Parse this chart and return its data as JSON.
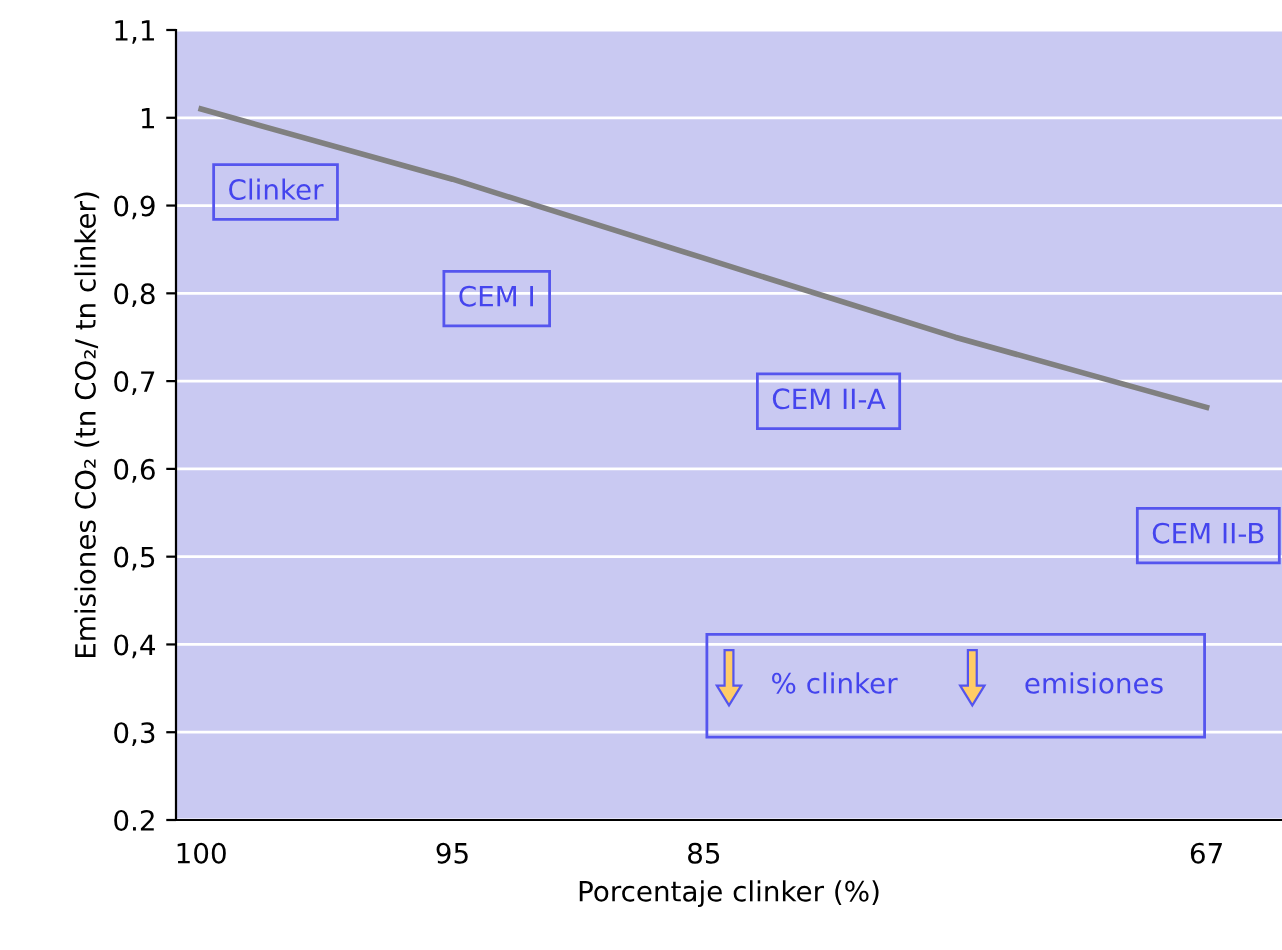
{
  "chart_data": {
    "type": "line",
    "xlabel": "Porcentaje clinker (%)",
    "ylabel": "Emisiones CO₂ (tn CO₂/ tn clinker)",
    "categories": [
      "100",
      "95",
      "85",
      null,
      "67"
    ],
    "series": [
      {
        "color": "#808080",
        "values": [
          1.01,
          0.93,
          0.84,
          0.75,
          0.67
        ]
      }
    ],
    "ylim": [
      0.2,
      1.1
    ],
    "yticks": [
      {
        "value": 0.2,
        "label": "0.2"
      },
      {
        "value": 0.3,
        "label": "0,3"
      },
      {
        "value": 0.4,
        "label": "0,4"
      },
      {
        "value": 0.5,
        "label": "0,5"
      },
      {
        "value": 0.6,
        "label": "0,6"
      },
      {
        "value": 0.7,
        "label": "0,7"
      },
      {
        "value": 0.8,
        "label": "0,8"
      },
      {
        "value": 0.9,
        "label": "0,9"
      },
      {
        "value": 1,
        "label": "1"
      },
      {
        "value": 1.1,
        "label": "1,1"
      }
    ],
    "grid": "y",
    "marker": "none",
    "annotations": [
      "Clinker",
      "CEM I",
      "CEM II-A",
      "CEM II-B",
      "% clinker",
      "emisiones"
    ]
  }
}
